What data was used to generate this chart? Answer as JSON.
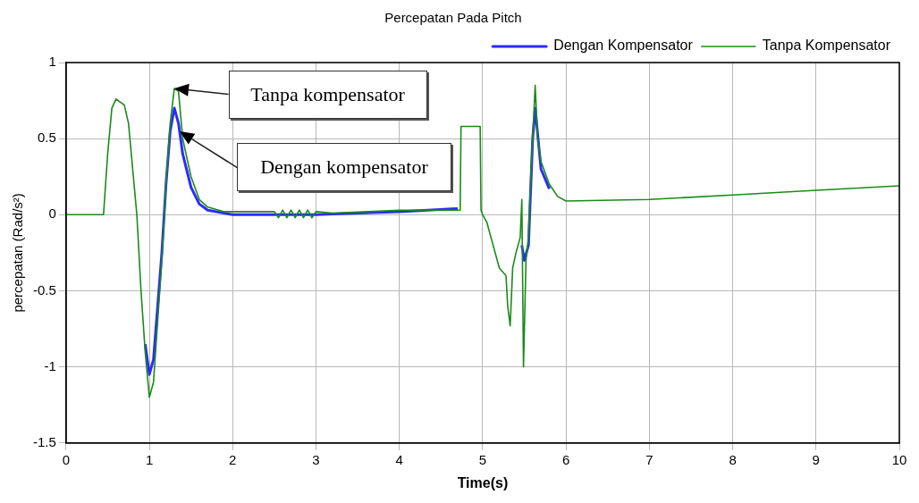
{
  "chart_data": {
    "type": "line",
    "title": "Percepatan Pada Pitch",
    "xlabel": "Time(s)",
    "ylabel": "percepatan (Rad/s²)",
    "xlim": [
      0,
      10
    ],
    "xticks": [
      0,
      1,
      2,
      3,
      4,
      5,
      6,
      7,
      8,
      9,
      10
    ],
    "ylim": [
      -1.5,
      1
    ],
    "yticks": [
      -1.5,
      -1,
      -0.5,
      0,
      0.5,
      1
    ],
    "grid": true,
    "legend": "top right",
    "marker": "none",
    "line_style": "solid",
    "annotations": [
      "Tanpa kompensator",
      "Dengan kompensator"
    ],
    "series": [
      {
        "name": "Dengan Kompensator",
        "color": "#2b2bff",
        "x": [
          0.95,
          1.0,
          1.05,
          1.1,
          1.15,
          1.2,
          1.25,
          1.3,
          1.35,
          1.4,
          1.5,
          1.6,
          1.7,
          2.0,
          2.5,
          3.0,
          3.5,
          4.0,
          4.7,
          null,
          5.47,
          5.5,
          5.55,
          5.6,
          5.63,
          5.7,
          5.8
        ],
        "values": [
          -0.85,
          -1.05,
          -0.95,
          -0.6,
          -0.25,
          0.2,
          0.55,
          0.7,
          0.6,
          0.4,
          0.18,
          0.07,
          0.03,
          0,
          0,
          0,
          0.01,
          0.02,
          0.04,
          null,
          -0.2,
          -0.3,
          -0.2,
          0.5,
          0.7,
          0.3,
          0.17
        ]
      },
      {
        "name": "Tanpa Kompensator",
        "color": "#1a8a1a",
        "x": [
          0,
          0.45,
          0.5,
          0.55,
          0.6,
          0.7,
          0.75,
          0.8,
          0.85,
          0.9,
          0.95,
          1.0,
          1.05,
          1.1,
          1.15,
          1.2,
          1.25,
          1.3,
          1.35,
          1.4,
          1.5,
          1.6,
          1.7,
          1.9,
          2.5,
          2.55,
          2.6,
          2.65,
          2.7,
          2.75,
          2.8,
          2.85,
          2.9,
          2.95,
          3.0,
          3.2,
          4.0,
          4.73,
          4.74,
          4.97,
          4.98,
          5.0,
          5.05,
          5.1,
          5.2,
          5.28,
          5.3,
          5.33,
          5.36,
          5.4,
          5.45,
          5.47,
          5.49,
          5.52,
          5.55,
          5.58,
          5.6,
          5.63,
          5.66,
          5.7,
          5.8,
          5.9,
          6.0,
          7,
          8,
          9,
          10
        ],
        "values": [
          0,
          0,
          0.4,
          0.7,
          0.76,
          0.72,
          0.6,
          0.3,
          0,
          -0.5,
          -0.9,
          -1.2,
          -1.1,
          -0.7,
          -0.3,
          0.2,
          0.6,
          0.83,
          0.81,
          0.5,
          0.25,
          0.1,
          0.05,
          0.02,
          0.02,
          -0.02,
          0.03,
          -0.02,
          0.03,
          -0.02,
          0.03,
          -0.02,
          0.03,
          -0.02,
          0.02,
          0.01,
          0.03,
          0.03,
          0.58,
          0.58,
          0.03,
          0,
          -0.05,
          -0.15,
          -0.35,
          -0.4,
          -0.6,
          -0.73,
          -0.35,
          -0.25,
          -0.15,
          0.1,
          -1.0,
          -0.3,
          -0.15,
          0.3,
          0.5,
          0.85,
          0.5,
          0.35,
          0.2,
          0.12,
          0.09,
          0.1,
          0.13,
          0.16,
          0.19
        ]
      }
    ]
  }
}
